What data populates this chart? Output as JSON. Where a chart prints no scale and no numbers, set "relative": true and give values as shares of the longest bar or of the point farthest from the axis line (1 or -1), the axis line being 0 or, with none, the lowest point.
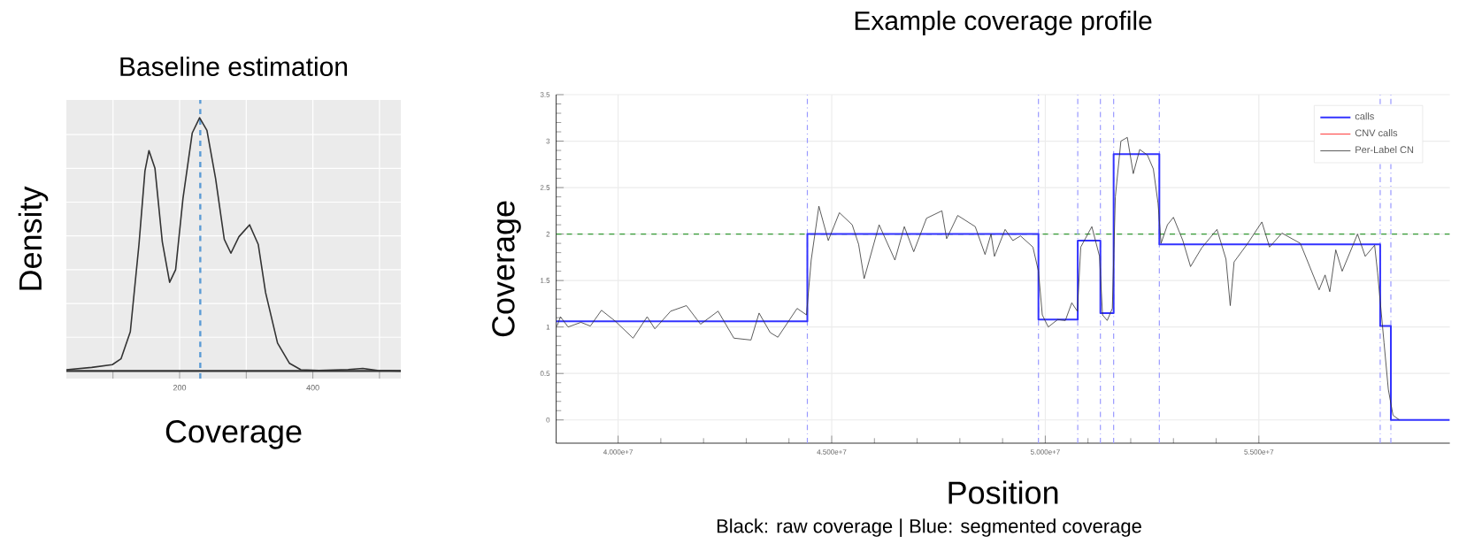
{
  "chart_data": [
    {
      "type": "line",
      "title": "Baseline estimation",
      "xlabel": "Coverage",
      "ylabel": "Density",
      "relative": true,
      "grid": true,
      "xlim": [
        30,
        532
      ],
      "xticks": [
        {
          "value": 100,
          "label": null
        },
        200,
        {
          "value": 300,
          "label": null
        },
        400,
        {
          "value": 500,
          "label": null
        }
      ],
      "color": "#333333",
      "x": [
        30,
        68,
        99,
        112,
        126,
        139,
        148,
        154,
        163,
        174,
        185,
        194,
        205,
        219,
        230,
        241,
        254,
        267,
        277,
        289,
        305,
        318,
        329,
        347,
        365,
        382,
        409,
        453,
        475,
        497,
        532
      ],
      "values": [
        0.005,
        0.014,
        0.025,
        0.048,
        0.155,
        0.5,
        0.79,
        0.87,
        0.8,
        0.51,
        0.35,
        0.4,
        0.68,
        0.94,
        1.0,
        0.95,
        0.76,
        0.52,
        0.465,
        0.53,
        0.577,
        0.5,
        0.31,
        0.11,
        0.03,
        0.005,
        0.002,
        0.006,
        0.01,
        0.002,
        0
      ],
      "ref_lines": [
        {
          "axis": "x",
          "value": 231,
          "color": "#5b9bd5",
          "line_style": "dashed"
        },
        {
          "axis": "y",
          "value": 0,
          "color": "#333333",
          "line_style": "solid"
        }
      ]
    },
    {
      "type": "line",
      "title": "Example coverage profile",
      "xlabel": "Position",
      "ylabel": "Coverage",
      "grid": true,
      "legend": "top right",
      "xlim": [
        38550000,
        59470000
      ],
      "ylim": [
        -0.25,
        3.5
      ],
      "xticks": [
        {
          "value": 40000000,
          "label": "4.000e+7"
        },
        {
          "value": 45000000,
          "label": "4.500e+7"
        },
        {
          "value": 50000000,
          "label": "5.000e+7"
        },
        {
          "value": 55000000,
          "label": "5.500e+7"
        }
      ],
      "yticks": [
        0,
        0.5,
        1,
        1.5,
        2,
        2.5,
        3,
        3.5
      ],
      "series": [
        {
          "name": "calls",
          "type": "step",
          "color": "#3333ff",
          "x": [
            38550000,
            44430000,
            49840000,
            50760000,
            51290000,
            51600000,
            52670000,
            57840000,
            58090000,
            59470000
          ],
          "values": [
            1.06,
            2.0,
            1.08,
            1.93,
            1.15,
            2.86,
            1.89,
            1.01,
            0,
            0
          ]
        },
        {
          "name": "CNV calls",
          "type": "line",
          "color": "#ff0000"
        },
        {
          "name": "Per-Label CN",
          "type": "line",
          "color": "#333333",
          "x": [
            38570000,
            38650000,
            38830000,
            39130000,
            39350000,
            39610000,
            39940000,
            40350000,
            40680000,
            40860000,
            41230000,
            41600000,
            41930000,
            42340000,
            42710000,
            43110000,
            43300000,
            43560000,
            43740000,
            44190000,
            44410000,
            44520000,
            44700000,
            44920000,
            45180000,
            45480000,
            45630000,
            45760000,
            46110000,
            46480000,
            46700000,
            46920000,
            47220000,
            47580000,
            47690000,
            47950000,
            48360000,
            48590000,
            48730000,
            48810000,
            49060000,
            49240000,
            49420000,
            49710000,
            49840000,
            49930000,
            50070000,
            50290000,
            50470000,
            50620000,
            50750000,
            50830000,
            51090000,
            51270000,
            51340000,
            51450000,
            51570000,
            51640000,
            51770000,
            51920000,
            52060000,
            52210000,
            52390000,
            52530000,
            52640000,
            52710000,
            52860000,
            53000000,
            53220000,
            53400000,
            53660000,
            54020000,
            54230000,
            54330000,
            54420000,
            54740000,
            55070000,
            55250000,
            55540000,
            55970000,
            56120000,
            56410000,
            56550000,
            56660000,
            56800000,
            56950000,
            57310000,
            57490000,
            57710000,
            57780000,
            57930000,
            58030000,
            58140000,
            58290000
          ],
          "values": [
            1.01,
            1.11,
            1.0,
            1.05,
            1.01,
            1.18,
            1.06,
            0.88,
            1.11,
            0.98,
            1.17,
            1.23,
            1.03,
            1.17,
            0.88,
            0.86,
            1.15,
            0.94,
            0.89,
            1.2,
            1.13,
            1.72,
            2.3,
            1.93,
            2.23,
            2.1,
            1.89,
            1.52,
            2.1,
            1.72,
            2.08,
            1.81,
            2.17,
            2.25,
            1.95,
            2.2,
            2.08,
            1.78,
            2.0,
            1.76,
            2.05,
            1.93,
            1.98,
            1.86,
            1.6,
            1.13,
            1.0,
            1.08,
            1.07,
            1.26,
            1.17,
            1.86,
            2.08,
            1.76,
            1.13,
            1.07,
            1.2,
            2.4,
            3.0,
            3.04,
            2.65,
            2.91,
            2.85,
            2.7,
            2.33,
            1.9,
            2.1,
            2.18,
            1.93,
            1.65,
            1.85,
            2.05,
            1.73,
            1.23,
            1.7,
            1.9,
            2.13,
            1.86,
            2.01,
            1.9,
            1.73,
            1.4,
            1.56,
            1.38,
            1.83,
            1.6,
            2.0,
            1.76,
            1.88,
            1.58,
            0.83,
            0.33,
            0.05,
            0.0
          ]
        }
      ],
      "ref_lines": [
        {
          "axis": "y",
          "value": 2,
          "color": "#339933",
          "line_style": "dashed"
        },
        {
          "axis": "x",
          "value": 44430000,
          "color": "#9999ff",
          "line_style": "dashdot"
        },
        {
          "axis": "x",
          "value": 49840000,
          "color": "#9999ff",
          "line_style": "dashdot"
        },
        {
          "axis": "x",
          "value": 50760000,
          "color": "#9999ff",
          "line_style": "dashdot"
        },
        {
          "axis": "x",
          "value": 51290000,
          "color": "#9999ff",
          "line_style": "dashdot"
        },
        {
          "axis": "x",
          "value": 51600000,
          "color": "#9999ff",
          "line_style": "dashdot"
        },
        {
          "axis": "x",
          "value": 52670000,
          "color": "#9999ff",
          "line_style": "dashdot"
        },
        {
          "axis": "x",
          "value": 57840000,
          "color": "#9999ff",
          "line_style": "dashdot"
        },
        {
          "axis": "x",
          "value": 58090000,
          "color": "#9999ff",
          "line_style": "dashdot"
        }
      ],
      "annotations": [
        "Black: raw coverage | Blue: segmented coverage"
      ]
    }
  ]
}
